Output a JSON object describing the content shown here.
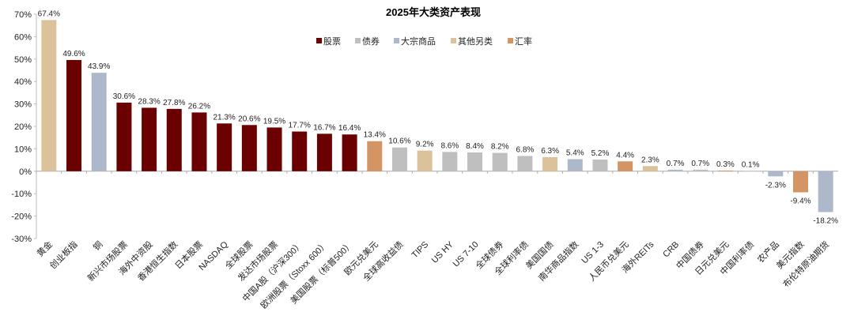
{
  "chart_data": {
    "type": "bar",
    "title": "2025年大类资产表现",
    "ylim": [
      -30,
      70
    ],
    "yticks": [
      "-30%",
      "-20%",
      "-10%",
      "0%",
      "10%",
      "20%",
      "30%",
      "40%",
      "50%",
      "60%",
      "70%"
    ],
    "legend_position": "top",
    "grid": false,
    "legend": [
      {
        "name": "股票",
        "color": "#6b0000"
      },
      {
        "name": "债券",
        "color": "#bfbfbf"
      },
      {
        "name": "大宗商品",
        "color": "#adb9ca"
      },
      {
        "name": "其他另类",
        "color": "#dbc29a"
      },
      {
        "name": "汇率",
        "color": "#d49463"
      }
    ],
    "categories": [
      "黄金",
      "创业板指",
      "铜",
      "新兴市场股票",
      "海外中资股",
      "香港恒生指数",
      "日本股票",
      "NASDAQ",
      "全球股票",
      "发达市场股票",
      "中国A股（沪深300）",
      "欧洲股票（Stoxx 600）",
      "美国股票（标普500）",
      "欧元兑美元",
      "全球高收益债",
      "TIPS",
      "US HY",
      "US 7-10",
      "全球债券",
      "全球利率债",
      "美国国债",
      "南华商品指数",
      "US 1-3",
      "人民币兑美元",
      "海外REITs",
      "CRB",
      "中国债券",
      "日元兑美元",
      "中国利率债",
      "农产品",
      "美元指数",
      "布伦特原油期货"
    ],
    "values": [
      67.4,
      49.6,
      43.9,
      30.6,
      28.3,
      27.8,
      26.2,
      21.3,
      20.6,
      19.5,
      17.7,
      16.7,
      16.4,
      13.4,
      10.6,
      9.2,
      8.6,
      8.4,
      8.2,
      6.8,
      6.3,
      5.4,
      5.2,
      4.4,
      2.3,
      0.7,
      0.7,
      0.3,
      0.1,
      -2.3,
      -9.4,
      -18.2
    ],
    "labels": [
      "67.4%",
      "49.6%",
      "43.9%",
      "30.6%",
      "28.3%",
      "27.8%",
      "26.2%",
      "21.3%",
      "20.6%",
      "19.5%",
      "17.7%",
      "16.7%",
      "16.4%",
      "13.4%",
      "10.6%",
      "9.2%",
      "8.6%",
      "8.4%",
      "8.2%",
      "6.8%",
      "6.3%",
      "5.4%",
      "5.2%",
      "4.4%",
      "2.3%",
      "0.7%",
      "0.7%",
      "0.3%",
      "0.1%",
      "-2.3%",
      "-9.4%",
      "-18.2%"
    ],
    "groups": [
      "其他另类",
      "股票",
      "大宗商品",
      "股票",
      "股票",
      "股票",
      "股票",
      "股票",
      "股票",
      "股票",
      "股票",
      "股票",
      "股票",
      "汇率",
      "债券",
      "其他另类",
      "债券",
      "债券",
      "债券",
      "债券",
      "其他另类",
      "大宗商品",
      "债券",
      "汇率",
      "其他另类",
      "大宗商品",
      "债券",
      "汇率",
      "债券",
      "大宗商品",
      "汇率",
      "大宗商品"
    ]
  }
}
